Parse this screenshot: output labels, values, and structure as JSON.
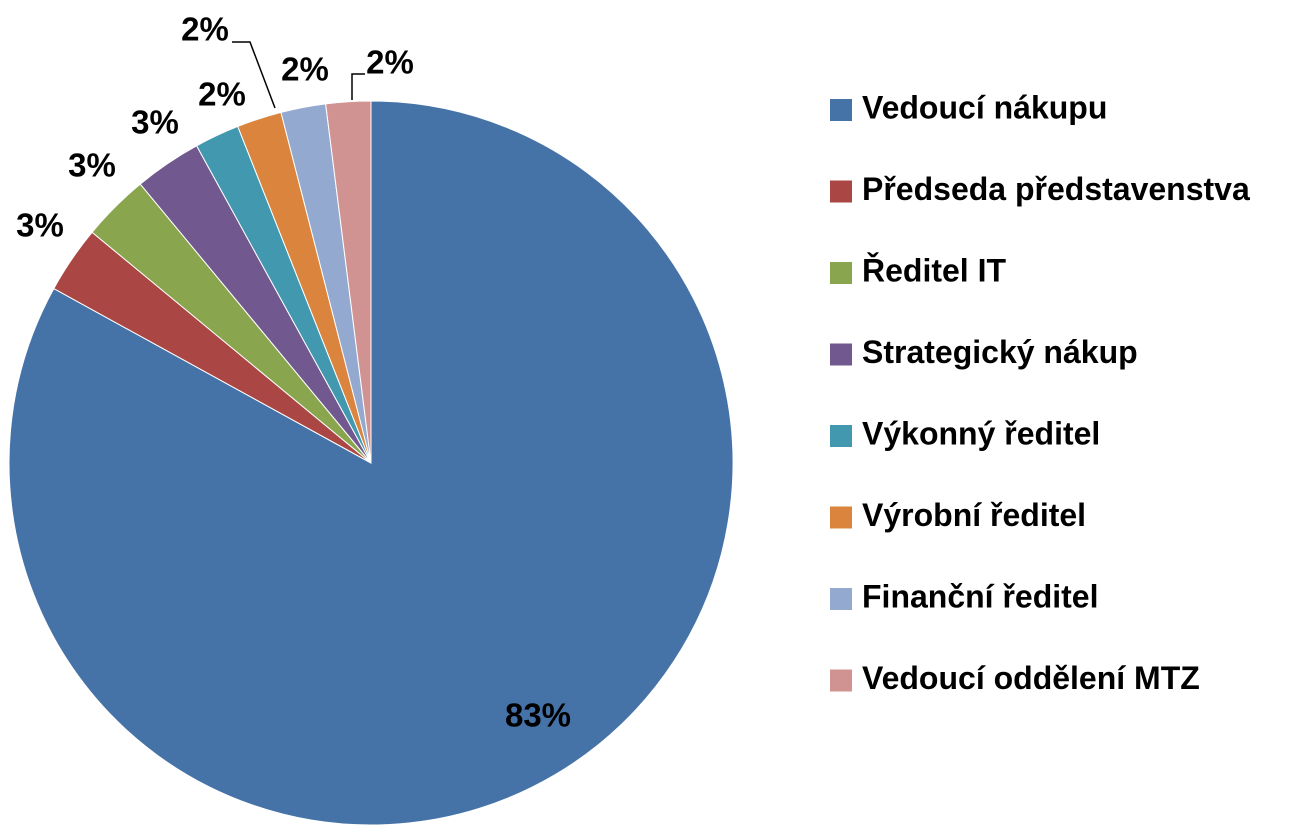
{
  "chart_data": {
    "type": "pie",
    "categories": [
      "Vedoucí nákupu",
      "Předseda představenstva",
      "Ředitel IT",
      "Strategický nákup",
      "Výkonný ředitel",
      "Výrobní ředitel",
      "Finanční ředitel",
      "Vedoucí oddělení MTZ"
    ],
    "values": [
      83,
      3,
      3,
      3,
      2,
      2,
      2,
      2
    ],
    "value_labels": [
      "83%",
      "3%",
      "3%",
      "3%",
      "2%",
      "2%",
      "2%",
      "2%"
    ],
    "colors": [
      "#4572a7",
      "#aa4643",
      "#89a54e",
      "#71588f",
      "#4198af",
      "#db843d",
      "#93a9cf",
      "#d19392"
    ],
    "legend": "right"
  }
}
